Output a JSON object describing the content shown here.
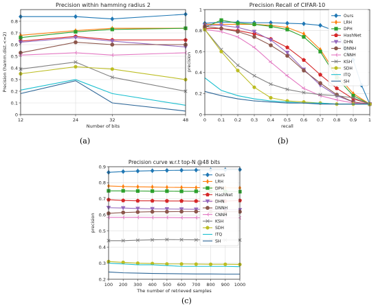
{
  "colors": {
    "Ours": "#1f77b4",
    "LRH": "#ff7f0e",
    "DPH": "#2ca02c",
    "HashNet": "#d62728",
    "DHN": "#9467bd",
    "DNNH": "#8c564b",
    "CNNH": "#e377c2",
    "KSH": "#7f7f7f",
    "SDH": "#bcbd22",
    "ITQ": "#17becf",
    "SH": "#2a6496"
  },
  "markers": {
    "Ours": "diamond",
    "LRH": "thin-diamond",
    "DPH": "square",
    "HashNet": "pentagon",
    "DHN": "triangle-down",
    "DNNH": "octagon",
    "CNNH": "tri-left",
    "KSH": "x",
    "SDH": "circle",
    "ITQ": "none",
    "SH": "none"
  },
  "labels": {
    "a": "(a)",
    "b": "(b)",
    "c": "(c)"
  },
  "chart_data": [
    {
      "id": "a",
      "type": "line",
      "title": "Precision within hamming radius 2",
      "xlabel": "Number of bits",
      "ylabel": "Precision (hamm.dist.<=2)",
      "x": [
        12,
        24,
        32,
        48
      ],
      "xlim": [
        12,
        48
      ],
      "ylim": [
        0.0,
        0.9
      ],
      "xticks": [
        12,
        24,
        32,
        48
      ],
      "yticks": [
        0.0,
        0.1,
        0.2,
        0.3,
        0.4,
        0.5,
        0.6,
        0.7,
        0.8
      ],
      "grid": true,
      "legend": "none",
      "series": [
        {
          "name": "Ours",
          "values": [
            0.84,
            0.84,
            0.82,
            0.86
          ]
        },
        {
          "name": "LRH",
          "values": [
            0.68,
            0.72,
            0.74,
            0.74
          ]
        },
        {
          "name": "DPH",
          "values": [
            0.66,
            0.71,
            0.73,
            0.74
          ]
        },
        {
          "name": "HashNet",
          "values": [
            0.63,
            0.67,
            0.64,
            0.64
          ]
        },
        {
          "name": "DHN",
          "values": [
            0.62,
            0.66,
            0.63,
            0.58
          ]
        },
        {
          "name": "DNNH",
          "values": [
            0.53,
            0.62,
            0.6,
            0.6
          ]
        },
        {
          "name": "CNNH",
          "values": [
            0.51,
            0.53,
            0.51,
            0.53
          ]
        },
        {
          "name": "KSH",
          "values": [
            0.39,
            0.45,
            0.32,
            0.2
          ]
        },
        {
          "name": "SDH",
          "values": [
            0.35,
            0.41,
            0.39,
            0.3
          ]
        },
        {
          "name": "ITQ",
          "values": [
            0.21,
            0.3,
            0.18,
            0.08
          ]
        },
        {
          "name": "SH",
          "values": [
            0.18,
            0.29,
            0.1,
            0.03
          ]
        }
      ]
    },
    {
      "id": "b",
      "type": "line",
      "title": "Precision Recall of CIFAR-10",
      "xlabel": "recall",
      "ylabel": "precision",
      "xlim": [
        0.0,
        1.0
      ],
      "ylim": [
        0.0,
        1.0
      ],
      "xticks": [
        0.0,
        0.1,
        0.2,
        0.3,
        0.4,
        0.5,
        0.6,
        0.7,
        0.8,
        0.9,
        1.0
      ],
      "yticks": [
        0.0,
        0.2,
        0.4,
        0.6,
        0.8,
        1.0
      ],
      "grid": true,
      "legend": "top-right",
      "series": [
        {
          "name": "Ours",
          "x": [
            0,
            0.1,
            0.2,
            0.3,
            0.4,
            0.5,
            0.6,
            0.7,
            0.8,
            0.85,
            0.9,
            0.95,
            1.0
          ],
          "values": [
            0.87,
            0.88,
            0.88,
            0.875,
            0.875,
            0.87,
            0.865,
            0.85,
            0.79,
            0.63,
            0.52,
            0.28,
            0.1
          ]
        },
        {
          "name": "LRH",
          "x": [
            0,
            0.1,
            0.2,
            0.3,
            0.4,
            0.5,
            0.6,
            0.7,
            0.8,
            0.9,
            1.0
          ],
          "values": [
            0.86,
            0.86,
            0.86,
            0.86,
            0.85,
            0.83,
            0.77,
            0.62,
            0.38,
            0.2,
            0.1
          ]
        },
        {
          "name": "DPH",
          "x": [
            0,
            0.1,
            0.2,
            0.3,
            0.4,
            0.5,
            0.6,
            0.7,
            0.8,
            0.9,
            1.0
          ],
          "values": [
            0.83,
            0.9,
            0.87,
            0.86,
            0.84,
            0.81,
            0.74,
            0.6,
            0.35,
            0.18,
            0.1
          ]
        },
        {
          "name": "HashNet",
          "x": [
            0,
            0.1,
            0.2,
            0.3,
            0.4,
            0.5,
            0.6,
            0.7,
            0.8,
            0.9,
            1.0
          ],
          "values": [
            0.82,
            0.82,
            0.8,
            0.77,
            0.72,
            0.64,
            0.52,
            0.38,
            0.25,
            0.15,
            0.1
          ]
        },
        {
          "name": "DHN",
          "x": [
            0,
            0.1,
            0.2,
            0.3,
            0.4,
            0.5,
            0.6,
            0.7,
            0.8,
            0.9,
            1.0
          ],
          "values": [
            0.85,
            0.85,
            0.83,
            0.79,
            0.71,
            0.59,
            0.43,
            0.28,
            0.18,
            0.12,
            0.1
          ]
        },
        {
          "name": "DNNH",
          "x": [
            0,
            0.1,
            0.2,
            0.3,
            0.4,
            0.5,
            0.6,
            0.7,
            0.8,
            0.9,
            1.0
          ],
          "values": [
            0.84,
            0.82,
            0.79,
            0.74,
            0.66,
            0.56,
            0.42,
            0.3,
            0.19,
            0.12,
            0.1
          ]
        },
        {
          "name": "CNNH",
          "x": [
            0,
            0.1,
            0.2,
            0.3,
            0.4,
            0.5,
            0.6,
            0.7,
            0.8,
            0.9,
            1.0
          ],
          "values": [
            0.81,
            0.79,
            0.74,
            0.64,
            0.5,
            0.37,
            0.25,
            0.18,
            0.14,
            0.11,
            0.1
          ]
        },
        {
          "name": "KSH",
          "x": [
            0,
            0.1,
            0.2,
            0.3,
            0.4,
            0.5,
            0.6,
            0.7,
            0.8,
            0.9,
            1.0
          ],
          "values": [
            0.81,
            0.62,
            0.47,
            0.37,
            0.29,
            0.24,
            0.21,
            0.19,
            0.18,
            0.16,
            0.1
          ]
        },
        {
          "name": "SDH",
          "x": [
            0,
            0.1,
            0.2,
            0.3,
            0.4,
            0.5,
            0.6,
            0.7,
            0.8,
            0.9,
            1.0
          ],
          "values": [
            0.81,
            0.6,
            0.42,
            0.26,
            0.16,
            0.13,
            0.12,
            0.11,
            0.1,
            0.1,
            0.1
          ]
        },
        {
          "name": "ITQ",
          "x": [
            0,
            0.1,
            0.2,
            0.3,
            0.4,
            0.5,
            0.6,
            0.7,
            0.8,
            0.9,
            1.0
          ],
          "values": [
            0.35,
            0.23,
            0.18,
            0.15,
            0.13,
            0.12,
            0.11,
            0.11,
            0.1,
            0.1,
            0.1
          ]
        },
        {
          "name": "SH",
          "x": [
            0,
            0.1,
            0.2,
            0.3,
            0.4,
            0.5,
            0.6,
            0.7,
            0.8,
            0.9,
            1.0
          ],
          "values": [
            0.22,
            0.18,
            0.15,
            0.13,
            0.12,
            0.11,
            0.11,
            0.1,
            0.1,
            0.1,
            0.1
          ]
        }
      ]
    },
    {
      "id": "c",
      "type": "line",
      "title": "Precision curve w.r.t top-N @48 bits",
      "xlabel": "The number of retrieved samples",
      "ylabel": "precision",
      "x": [
        100,
        200,
        300,
        400,
        500,
        600,
        700,
        800,
        900,
        1000
      ],
      "xlim": [
        100,
        1000
      ],
      "ylim": [
        0.2,
        0.9
      ],
      "xticks": [
        100,
        200,
        300,
        400,
        500,
        600,
        700,
        800,
        900,
        1000
      ],
      "yticks": [
        0.2,
        0.3,
        0.4,
        0.5,
        0.6,
        0.7,
        0.8,
        0.9
      ],
      "grid": true,
      "legend": "top-right",
      "series": [
        {
          "name": "Ours",
          "values": [
            0.865,
            0.87,
            0.873,
            0.875,
            0.877,
            0.878,
            0.879,
            0.88,
            0.881,
            0.882
          ]
        },
        {
          "name": "LRH",
          "values": [
            0.78,
            0.777,
            0.775,
            0.774,
            0.772,
            0.771,
            0.77,
            0.77,
            0.769,
            0.768
          ]
        },
        {
          "name": "DPH",
          "values": [
            0.75,
            0.75,
            0.749,
            0.748,
            0.748,
            0.747,
            0.747,
            0.746,
            0.746,
            0.745
          ]
        },
        {
          "name": "HashNet",
          "values": [
            0.695,
            0.69,
            0.688,
            0.688,
            0.687,
            0.687,
            0.686,
            0.686,
            0.686,
            0.69
          ]
        },
        {
          "name": "DHN",
          "values": [
            0.645,
            0.643,
            0.64,
            0.638,
            0.637,
            0.636,
            0.635,
            0.634,
            0.633,
            0.632
          ]
        },
        {
          "name": "DNNH",
          "values": [
            0.61,
            0.615,
            0.618,
            0.62,
            0.62,
            0.621,
            0.621,
            0.62,
            0.62,
            0.62
          ]
        },
        {
          "name": "CNNH",
          "values": [
            0.585,
            0.585,
            0.585,
            0.584,
            0.584,
            0.583,
            0.583,
            0.583,
            0.582,
            0.582
          ]
        },
        {
          "name": "KSH",
          "values": [
            0.44,
            0.44,
            0.443,
            0.445,
            0.447,
            0.446,
            0.445,
            0.445,
            0.444,
            0.444
          ]
        },
        {
          "name": "SDH",
          "values": [
            0.31,
            0.305,
            0.3,
            0.298,
            0.295,
            0.295,
            0.294,
            0.293,
            0.293,
            0.292
          ]
        },
        {
          "name": "ITQ",
          "values": [
            0.3,
            0.295,
            0.29,
            0.29,
            0.285,
            0.28,
            0.28,
            0.28,
            0.28,
            0.278
          ]
        },
        {
          "name": "SH",
          "values": [
            0.245,
            0.24,
            0.238,
            0.236,
            0.235,
            0.234,
            0.233,
            0.233,
            0.232,
            0.232
          ]
        }
      ]
    }
  ]
}
